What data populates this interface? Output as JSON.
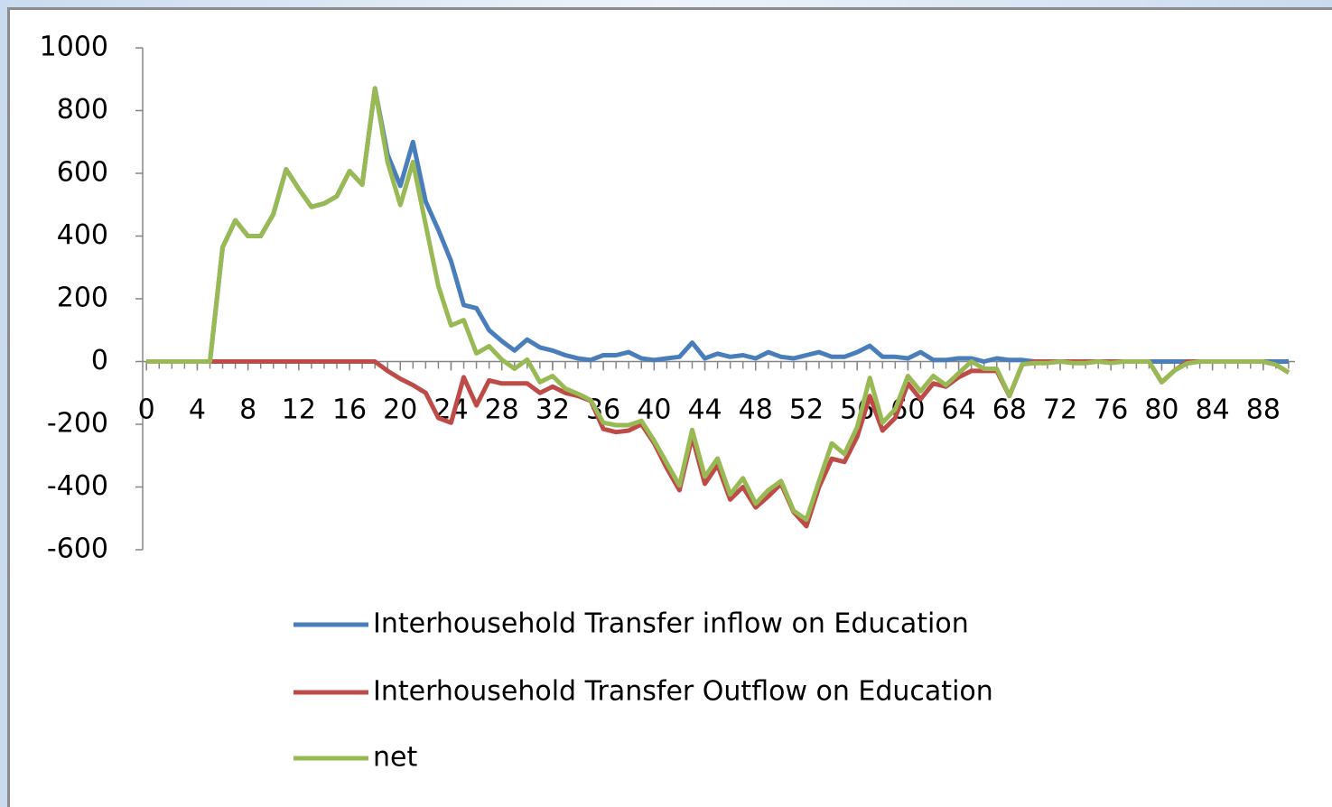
{
  "chart_data": {
    "type": "line",
    "x": [
      0,
      1,
      2,
      3,
      4,
      5,
      6,
      7,
      8,
      9,
      10,
      11,
      12,
      13,
      14,
      15,
      16,
      17,
      18,
      19,
      20,
      21,
      22,
      23,
      24,
      25,
      26,
      27,
      28,
      29,
      30,
      31,
      32,
      33,
      34,
      35,
      36,
      37,
      38,
      39,
      40,
      41,
      42,
      43,
      44,
      45,
      46,
      47,
      48,
      49,
      50,
      51,
      52,
      53,
      54,
      55,
      56,
      57,
      58,
      59,
      60,
      61,
      62,
      63,
      64,
      65,
      66,
      67,
      68,
      69,
      70,
      71,
      72,
      73,
      74,
      75,
      76,
      77,
      78,
      79,
      80,
      81,
      82,
      83,
      84,
      85,
      86,
      87,
      88,
      89,
      90
    ],
    "xlim": [
      -0.3,
      90.5
    ],
    "xticks": [
      0,
      4,
      8,
      12,
      16,
      20,
      24,
      28,
      32,
      36,
      40,
      44,
      48,
      52,
      56,
      60,
      64,
      68,
      72,
      76,
      80,
      84,
      88
    ],
    "ylim": [
      -600,
      1000
    ],
    "yticks": [
      -600,
      -400,
      -200,
      0,
      200,
      400,
      600,
      800,
      1000
    ],
    "legend": "bottom",
    "series": [
      {
        "name": "Interhousehold Transfer  inflow on Education",
        "color": "#4a7ebb",
        "values": [
          0,
          0,
          0,
          0,
          0,
          0,
          364,
          450,
          400,
          400,
          470,
          613,
          550,
          493,
          504,
          527,
          607,
          564,
          871,
          660,
          560,
          700,
          510,
          420,
          320,
          180,
          170,
          100,
          65,
          35,
          70,
          45,
          35,
          20,
          10,
          5,
          20,
          20,
          30,
          10,
          5,
          10,
          15,
          60,
          10,
          25,
          15,
          20,
          10,
          30,
          15,
          10,
          20,
          30,
          15,
          15,
          30,
          50,
          15,
          15,
          10,
          30,
          5,
          5,
          10,
          10,
          0,
          10,
          5,
          5,
          0,
          0,
          0,
          0,
          0,
          0,
          0,
          0,
          0,
          0,
          0,
          0,
          0,
          0,
          0,
          0,
          0,
          0,
          0,
          0,
          0
        ]
      },
      {
        "name": "Interhousehold Transfer  Outflow on Education",
        "color": "#be4b48",
        "values": [
          0,
          0,
          0,
          0,
          0,
          0,
          0,
          0,
          0,
          0,
          0,
          0,
          0,
          0,
          0,
          0,
          0,
          0,
          0,
          -30,
          -55,
          -75,
          -100,
          -180,
          -195,
          -50,
          -140,
          -60,
          -70,
          -70,
          -70,
          -100,
          -80,
          -100,
          -110,
          -125,
          -215,
          -225,
          -220,
          -200,
          -260,
          -340,
          -410,
          -240,
          -390,
          -330,
          -440,
          -400,
          -465,
          -430,
          -390,
          -480,
          -525,
          -400,
          -310,
          -320,
          -240,
          -110,
          -220,
          -180,
          -70,
          -120,
          -70,
          -80,
          -50,
          -30,
          -30,
          -30,
          -110,
          -10,
          0,
          0,
          0,
          0,
          0,
          0,
          0,
          0,
          0,
          0,
          -66,
          -29,
          0,
          0,
          0,
          0,
          0,
          0,
          0,
          -10,
          -35
        ]
      },
      {
        "name": "net",
        "color": "#98b954",
        "values": [
          0,
          0,
          0,
          0,
          0,
          0,
          364,
          450,
          400,
          400,
          470,
          613,
          550,
          493,
          504,
          527,
          607,
          564,
          871,
          636,
          499,
          636,
          436,
          241,
          115,
          132,
          26,
          49,
          6,
          -23,
          6,
          -66,
          -46,
          -86,
          -103,
          -123,
          -195,
          -203,
          -203,
          -189,
          -252,
          -324,
          -395,
          -218,
          -367,
          -309,
          -424,
          -372,
          -453,
          -410,
          -381,
          -476,
          -504,
          -381,
          -261,
          -295,
          -209,
          -52,
          -195,
          -152,
          -46,
          -95,
          -46,
          -75,
          -37,
          0,
          -23,
          -23,
          -109,
          -9,
          -5,
          -5,
          0,
          -5,
          -5,
          0,
          -5,
          0,
          0,
          0,
          -66,
          -29,
          -6,
          0,
          0,
          0,
          0,
          0,
          0,
          -10,
          -35
        ]
      }
    ]
  }
}
